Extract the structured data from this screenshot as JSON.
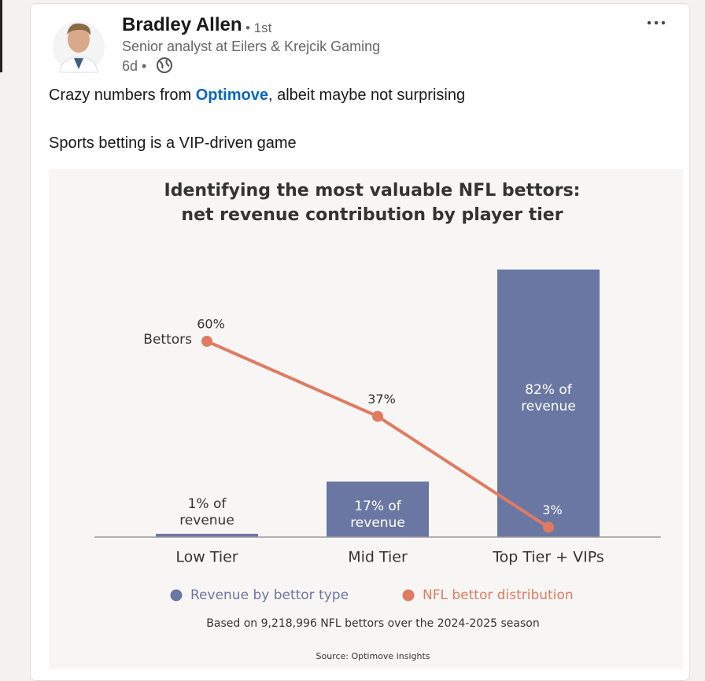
{
  "post": {
    "author": "Bradley Allen",
    "degree": "• 1st",
    "headline": "Senior analyst at Eilers & Krejcik Gaming",
    "time": "6d •",
    "text": [
      [
        "Crazy numbers from ",
        "Optimove",
        ", albeit maybe not surprising"
      ],
      [
        "Sports betting is a VIP-driven game"
      ]
    ]
  },
  "chart_data": {
    "type": "bar-line",
    "title": "Identifying the most valuable NFL bettors:",
    "subtitle": "net revenue contribution by player tier",
    "categories": [
      "Low Tier",
      "Mid Tier",
      "Top Tier + VIPs"
    ],
    "ylim": [
      0,
      100
    ],
    "series": [
      {
        "name": "Revenue by bettor type",
        "type": "bar",
        "color": "#6b77a3",
        "values": [
          1,
          17,
          82
        ],
        "value_labels": [
          "1% of revenue",
          "17% of revenue",
          "82% of revenue"
        ]
      },
      {
        "name": "NFL bettor distribution",
        "type": "line",
        "color": "#e07b62",
        "values": [
          60,
          37,
          3
        ],
        "value_labels": [
          "60%",
          "37%",
          "3%"
        ]
      }
    ],
    "annotation": "Bettors",
    "note": "Based on 9,218,996 NFL bettors over the 2024-2025 season",
    "source": "Source: Optimove insights"
  }
}
